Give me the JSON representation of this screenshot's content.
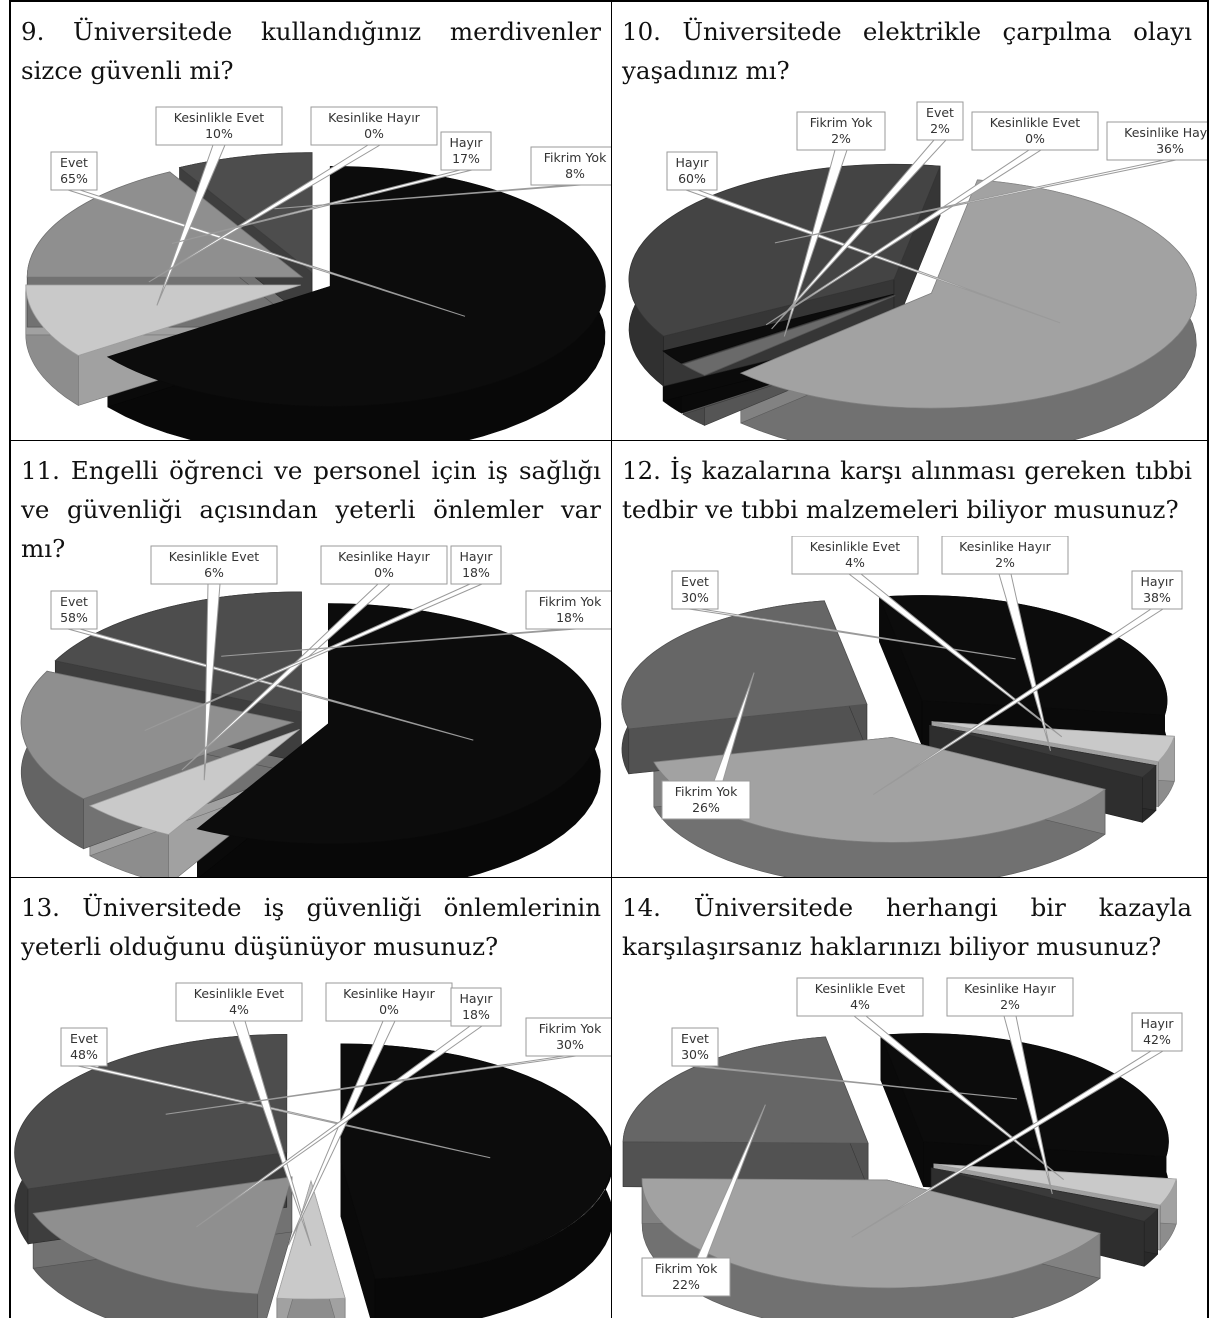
{
  "colors": {
    "evet": "#0c0c0c",
    "kesinlikle_evet": "#c9c9c9",
    "kesinlikle_hayir": "#e0e0e0",
    "hayir": "#8f8f8f",
    "fikrim_yok": "#4d4d4d",
    "border": "#000000"
  },
  "questions": [
    {
      "number": "9.",
      "text": "9. Üniversitede kullandığınız merdivenler sizce güvenli mi?"
    },
    {
      "number": "10.",
      "text": "10. Üniversitede elektrikle çarpılma olayı yaşadınız mı?"
    },
    {
      "number": "11.",
      "text": "11. Engelli öğrenci ve personel için iş sağlığı ve güvenliği açısından yeterli önlemler var mı?"
    },
    {
      "number": "12.",
      "text": "12. İş kazalarına karşı alınması gereken tıbbi tedbir ve tıbbi malzemeleri biliyor musunuz?"
    },
    {
      "number": "13.",
      "text": "13. Üniversitede iş güvenliği önlemlerinin yeterli olduğunu düşünüyor musunuz?"
    },
    {
      "number": "14.",
      "text": "14. Üniversitede herhangi bir kazayla karşılaşırsanız haklarınızı biliyor musunuz?"
    }
  ],
  "chart_data": [
    {
      "type": "pie",
      "question": "9",
      "slices": [
        {
          "label": "Evet",
          "value": 65,
          "value_label": "65%",
          "color": "#0c0c0c"
        },
        {
          "label": "Kesinlikle Evet",
          "value": 10,
          "value_label": "10%",
          "color": "#c9c9c9"
        },
        {
          "label": "Kesinlike Hayır",
          "value": 0,
          "value_label": "0%",
          "color": "#e0e0e0"
        },
        {
          "label": "Hayır",
          "value": 17,
          "value_label": "17%",
          "color": "#8f8f8f"
        },
        {
          "label": "Fikrim Yok",
          "value": 8,
          "value_label": "8%",
          "color": "#4d4d4d"
        }
      ]
    },
    {
      "type": "pie",
      "question": "10",
      "slices": [
        {
          "label": "Hayır",
          "value": 60,
          "value_label": "60%",
          "color": "#a2a2a2"
        },
        {
          "label": "Fikrim Yok",
          "value": 2,
          "value_label": "2%",
          "color": "#6a6a6a"
        },
        {
          "label": "Evet",
          "value": 2,
          "value_label": "2%",
          "color": "#0c0c0c"
        },
        {
          "label": "Kesinlikle Evet",
          "value": 0,
          "value_label": "0%",
          "color": "#e0e0e0"
        },
        {
          "label": "Kesinlike Hayır",
          "value": 36,
          "value_label": "36%",
          "color": "#444444"
        }
      ]
    },
    {
      "type": "pie",
      "question": "11",
      "slices": [
        {
          "label": "Evet",
          "value": 58,
          "value_label": "58%",
          "color": "#0c0c0c"
        },
        {
          "label": "Kesinlikle Evet",
          "value": 6,
          "value_label": "6%",
          "color": "#c9c9c9"
        },
        {
          "label": "Kesinlike Hayır",
          "value": 0,
          "value_label": "0%",
          "color": "#e0e0e0"
        },
        {
          "label": "Hayır",
          "value": 18,
          "value_label": "18%",
          "color": "#8f8f8f"
        },
        {
          "label": "Fikrim Yok",
          "value": 18,
          "value_label": "18%",
          "color": "#4d4d4d"
        }
      ]
    },
    {
      "type": "pie",
      "question": "12",
      "slices": [
        {
          "label": "Evet",
          "value": 30,
          "value_label": "30%",
          "color": "#0c0c0c"
        },
        {
          "label": "Kesinlikle Evet",
          "value": 4,
          "value_label": "4%",
          "color": "#c9c9c9"
        },
        {
          "label": "Kesinlike Hayır",
          "value": 2,
          "value_label": "2%",
          "color": "#3a3a3a"
        },
        {
          "label": "Hayır",
          "value": 38,
          "value_label": "38%",
          "color": "#a2a2a2"
        },
        {
          "label": "Fikrim Yok",
          "value": 26,
          "value_label": "26%",
          "color": "#666666"
        }
      ]
    },
    {
      "type": "pie",
      "question": "13",
      "slices": [
        {
          "label": "Evet",
          "value": 48,
          "value_label": "48%",
          "color": "#0c0c0c"
        },
        {
          "label": "Kesinlikle Evet",
          "value": 4,
          "value_label": "4%",
          "color": "#c9c9c9"
        },
        {
          "label": "Kesinlike Hayır",
          "value": 0,
          "value_label": "0%",
          "color": "#e0e0e0"
        },
        {
          "label": "Hayır",
          "value": 18,
          "value_label": "18%",
          "color": "#8f8f8f"
        },
        {
          "label": "Fikrim Yok",
          "value": 30,
          "value_label": "30%",
          "color": "#4d4d4d"
        }
      ]
    },
    {
      "type": "pie",
      "question": "14",
      "slices": [
        {
          "label": "Evet",
          "value": 30,
          "value_label": "30%",
          "color": "#0c0c0c"
        },
        {
          "label": "Kesinlikle Evet",
          "value": 4,
          "value_label": "4%",
          "color": "#c9c9c9"
        },
        {
          "label": "Kesinlike Hayır",
          "value": 2,
          "value_label": "2%",
          "color": "#3a3a3a"
        },
        {
          "label": "Hayır",
          "value": 42,
          "value_label": "42%",
          "color": "#a2a2a2"
        },
        {
          "label": "Fikrim Yok",
          "value": 22,
          "value_label": "22%",
          "color": "#666666"
        }
      ]
    }
  ]
}
